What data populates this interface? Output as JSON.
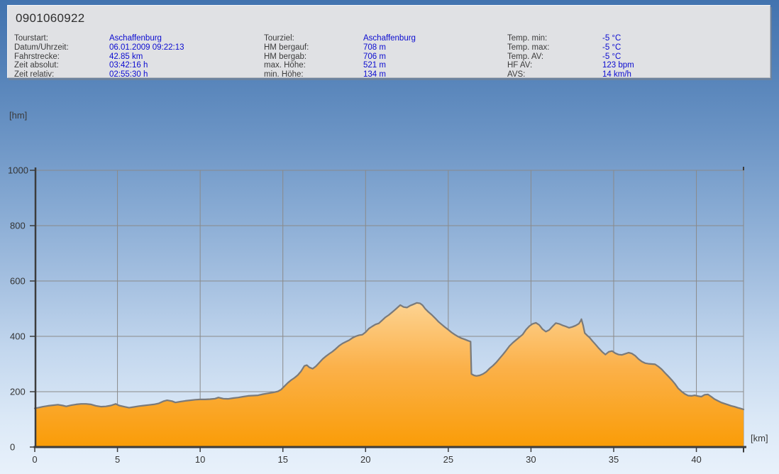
{
  "header": {
    "title": "0901060922",
    "columns": [
      {
        "rows": [
          {
            "label": "Tourstart:",
            "value": "Aschaffenburg"
          },
          {
            "label": "Datum/Uhrzeit:",
            "value": "06.01.2009 09:22:13"
          },
          {
            "label": "Fahrstrecke:",
            "value": "42.85 km"
          },
          {
            "label": "Zeit absolut:",
            "value": "03:42:16 h"
          },
          {
            "label": "Zeit relativ:",
            "value": "02:55:30 h"
          }
        ]
      },
      {
        "rows": [
          {
            "label": "Tourziel:",
            "value": "Aschaffenburg"
          },
          {
            "label": "HM bergauf:",
            "value": "708 m"
          },
          {
            "label": "HM bergab:",
            "value": "706 m"
          },
          {
            "label": "max. Höhe:",
            "value": "521 m"
          },
          {
            "label": "min. Höhe:",
            "value": "134 m"
          }
        ]
      },
      {
        "rows": [
          {
            "label": "Temp. min:",
            "value": "-5 °C"
          },
          {
            "label": "Temp. max:",
            "value": "-5 °C"
          },
          {
            "label": "Temp. AV:",
            "value": "-5 °C"
          },
          {
            "label": "HF AV:",
            "value": "123 bpm"
          },
          {
            "label": "AVS:",
            "value": "14 km/h"
          }
        ]
      }
    ]
  },
  "chart_data": {
    "type": "area",
    "title": "",
    "xlabel": "[km]",
    "ylabel": "[hm]",
    "xlim": [
      0,
      42.85
    ],
    "ylim": [
      0,
      1000
    ],
    "x_ticks": [
      0,
      5,
      10,
      15,
      20,
      25,
      30,
      35,
      40
    ],
    "y_ticks": [
      0,
      200,
      400,
      600,
      800,
      1000
    ],
    "grid": true,
    "legend": "none",
    "colors": {
      "grid": "#8a8a8a",
      "axis": "#3c3c3c",
      "tick_text": "#333333",
      "profile_line": "#7a7a7a",
      "fill_top": "#fdd494",
      "fill_mid": "#fbb14a",
      "fill_bottom": "#fa9c06"
    },
    "series": [
      {
        "name": "elevation",
        "points": [
          [
            0,
            140
          ],
          [
            0.2,
            142
          ],
          [
            0.5,
            146
          ],
          [
            0.8,
            149
          ],
          [
            1.1,
            151
          ],
          [
            1.4,
            153
          ],
          [
            1.7,
            150
          ],
          [
            1.9,
            147
          ],
          [
            2.2,
            151
          ],
          [
            2.5,
            154
          ],
          [
            2.8,
            156
          ],
          [
            3.1,
            156
          ],
          [
            3.4,
            154
          ],
          [
            3.7,
            149
          ],
          [
            4.0,
            146
          ],
          [
            4.3,
            147
          ],
          [
            4.6,
            150
          ],
          [
            4.9,
            156
          ],
          [
            5.1,
            150
          ],
          [
            5.4,
            146
          ],
          [
            5.7,
            142
          ],
          [
            6.0,
            145
          ],
          [
            6.3,
            148
          ],
          [
            6.6,
            150
          ],
          [
            6.9,
            152
          ],
          [
            7.2,
            154
          ],
          [
            7.5,
            158
          ],
          [
            7.8,
            166
          ],
          [
            8.0,
            169
          ],
          [
            8.3,
            166
          ],
          [
            8.5,
            161
          ],
          [
            8.8,
            164
          ],
          [
            9.1,
            167
          ],
          [
            9.4,
            169
          ],
          [
            9.7,
            171
          ],
          [
            10.0,
            172
          ],
          [
            10.3,
            172
          ],
          [
            10.6,
            173
          ],
          [
            10.9,
            175
          ],
          [
            11.1,
            179
          ],
          [
            11.4,
            175
          ],
          [
            11.7,
            174
          ],
          [
            12.0,
            177
          ],
          [
            12.3,
            179
          ],
          [
            12.6,
            182
          ],
          [
            12.9,
            185
          ],
          [
            13.2,
            186
          ],
          [
            13.5,
            187
          ],
          [
            13.8,
            191
          ],
          [
            14.1,
            194
          ],
          [
            14.4,
            197
          ],
          [
            14.7,
            201
          ],
          [
            14.9,
            208
          ],
          [
            15.1,
            220
          ],
          [
            15.3,
            232
          ],
          [
            15.5,
            242
          ],
          [
            15.7,
            250
          ],
          [
            15.9,
            260
          ],
          [
            16.1,
            274
          ],
          [
            16.3,
            293
          ],
          [
            16.45,
            296
          ],
          [
            16.6,
            288
          ],
          [
            16.8,
            283
          ],
          [
            17.0,
            292
          ],
          [
            17.2,
            305
          ],
          [
            17.4,
            318
          ],
          [
            17.6,
            328
          ],
          [
            17.8,
            337
          ],
          [
            18.0,
            345
          ],
          [
            18.2,
            355
          ],
          [
            18.4,
            366
          ],
          [
            18.6,
            374
          ],
          [
            18.8,
            380
          ],
          [
            19.0,
            386
          ],
          [
            19.2,
            394
          ],
          [
            19.4,
            400
          ],
          [
            19.6,
            404
          ],
          [
            19.8,
            406
          ],
          [
            20.0,
            415
          ],
          [
            20.2,
            428
          ],
          [
            20.4,
            436
          ],
          [
            20.6,
            443
          ],
          [
            20.8,
            447
          ],
          [
            21.0,
            458
          ],
          [
            21.2,
            469
          ],
          [
            21.4,
            477
          ],
          [
            21.6,
            487
          ],
          [
            21.8,
            497
          ],
          [
            22.0,
            508
          ],
          [
            22.1,
            513
          ],
          [
            22.3,
            506
          ],
          [
            22.5,
            504
          ],
          [
            22.7,
            511
          ],
          [
            22.9,
            516
          ],
          [
            23.1,
            521
          ],
          [
            23.3,
            519
          ],
          [
            23.45,
            512
          ],
          [
            23.6,
            500
          ],
          [
            23.8,
            488
          ],
          [
            24.0,
            478
          ],
          [
            24.2,
            466
          ],
          [
            24.4,
            453
          ],
          [
            24.6,
            443
          ],
          [
            24.8,
            433
          ],
          [
            25.0,
            424
          ],
          [
            25.2,
            414
          ],
          [
            25.4,
            406
          ],
          [
            25.6,
            399
          ],
          [
            25.8,
            393
          ],
          [
            26.0,
            389
          ],
          [
            26.2,
            384
          ],
          [
            26.35,
            381
          ],
          [
            26.4,
            264
          ],
          [
            26.55,
            259
          ],
          [
            26.7,
            257
          ],
          [
            26.9,
            259
          ],
          [
            27.1,
            264
          ],
          [
            27.3,
            272
          ],
          [
            27.5,
            284
          ],
          [
            27.7,
            294
          ],
          [
            27.9,
            306
          ],
          [
            28.1,
            320
          ],
          [
            28.3,
            334
          ],
          [
            28.5,
            349
          ],
          [
            28.7,
            365
          ],
          [
            28.9,
            377
          ],
          [
            29.1,
            387
          ],
          [
            29.3,
            397
          ],
          [
            29.5,
            407
          ],
          [
            29.7,
            424
          ],
          [
            29.9,
            437
          ],
          [
            30.1,
            445
          ],
          [
            30.3,
            449
          ],
          [
            30.5,
            441
          ],
          [
            30.7,
            426
          ],
          [
            30.9,
            417
          ],
          [
            31.1,
            423
          ],
          [
            31.3,
            436
          ],
          [
            31.5,
            448
          ],
          [
            31.7,
            445
          ],
          [
            31.9,
            440
          ],
          [
            32.1,
            436
          ],
          [
            32.3,
            431
          ],
          [
            32.5,
            434
          ],
          [
            32.7,
            439
          ],
          [
            32.9,
            446
          ],
          [
            33.0,
            456
          ],
          [
            33.05,
            462
          ],
          [
            33.15,
            440
          ],
          [
            33.25,
            412
          ],
          [
            33.4,
            403
          ],
          [
            33.55,
            395
          ],
          [
            33.7,
            384
          ],
          [
            33.9,
            371
          ],
          [
            34.1,
            357
          ],
          [
            34.3,
            344
          ],
          [
            34.5,
            334
          ],
          [
            34.7,
            344
          ],
          [
            34.9,
            347
          ],
          [
            35.1,
            339
          ],
          [
            35.3,
            334
          ],
          [
            35.5,
            333
          ],
          [
            35.7,
            337
          ],
          [
            35.9,
            341
          ],
          [
            36.1,
            338
          ],
          [
            36.3,
            330
          ],
          [
            36.5,
            318
          ],
          [
            36.7,
            309
          ],
          [
            36.9,
            303
          ],
          [
            37.1,
            301
          ],
          [
            37.3,
            300
          ],
          [
            37.5,
            299
          ],
          [
            37.7,
            291
          ],
          [
            37.9,
            281
          ],
          [
            38.1,
            268
          ],
          [
            38.3,
            256
          ],
          [
            38.5,
            243
          ],
          [
            38.7,
            229
          ],
          [
            38.9,
            212
          ],
          [
            39.1,
            201
          ],
          [
            39.3,
            192
          ],
          [
            39.5,
            186
          ],
          [
            39.7,
            185
          ],
          [
            39.9,
            187
          ],
          [
            40.1,
            184
          ],
          [
            40.3,
            182
          ],
          [
            40.5,
            189
          ],
          [
            40.7,
            190
          ],
          [
            40.9,
            182
          ],
          [
            41.1,
            173
          ],
          [
            41.3,
            167
          ],
          [
            41.5,
            161
          ],
          [
            41.7,
            157
          ],
          [
            41.9,
            153
          ],
          [
            42.1,
            149
          ],
          [
            42.3,
            146
          ],
          [
            42.5,
            142
          ],
          [
            42.7,
            139
          ],
          [
            42.85,
            136
          ]
        ]
      }
    ]
  }
}
